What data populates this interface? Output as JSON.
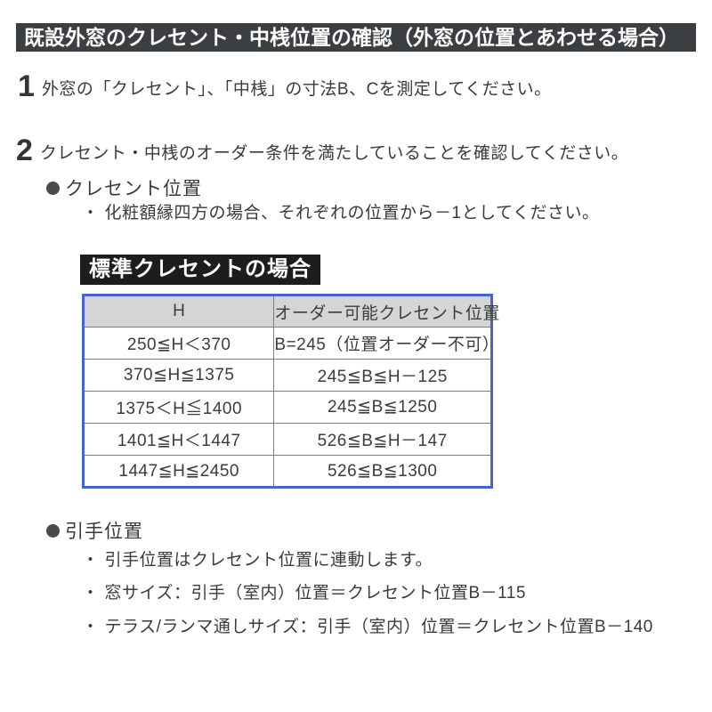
{
  "title_bar": "既設外窓のクレセント・中桟位置の確認（外窓の位置とあわせる場合）",
  "steps": [
    {
      "number": "1",
      "text": "外窓の「クレセント」、「中桟」の寸法B、Cを測定してください。"
    },
    {
      "number": "2",
      "text": "クレセント・中桟のオーダー条件を満たしていることを確認してください。"
    }
  ],
  "crescent_section": {
    "heading": "クレセント位置",
    "bullet_char": "・",
    "note": "化粧額縁四方の場合、それぞれの位置から－1としてください。",
    "table_label": "標準クレセントの場合"
  },
  "table": {
    "headers": [
      "H",
      "オーダー可能クレセント位置"
    ],
    "rows": [
      [
        "250≦H＜370",
        "B=245（位置オーダー不可）"
      ],
      [
        "370≦H≦1375",
        "245≦B≦H－125"
      ],
      [
        "1375＜H≦1400",
        "245≦B≦1250"
      ],
      [
        "1401≦H＜1447",
        "526≦B≦H－147"
      ],
      [
        "1447≦H≦2450",
        "526≦B≦1300"
      ]
    ]
  },
  "handle_section": {
    "heading": "引手位置",
    "bullet_char": "・",
    "notes": [
      "引手位置はクレセント位置に連動します。",
      "窓サイズ：引手（室内）位置＝クレセント位置B－115",
      "テラス/ランマ通しサイズ：引手（室内）位置＝クレセント位置B－140"
    ]
  },
  "colors": {
    "title_bar_bg": "#3c3f42",
    "label_bg": "#1d1d1d",
    "table_border": "#4663d4",
    "table_header_bg": "#d5d5d5",
    "text": "#3a3a3a"
  }
}
